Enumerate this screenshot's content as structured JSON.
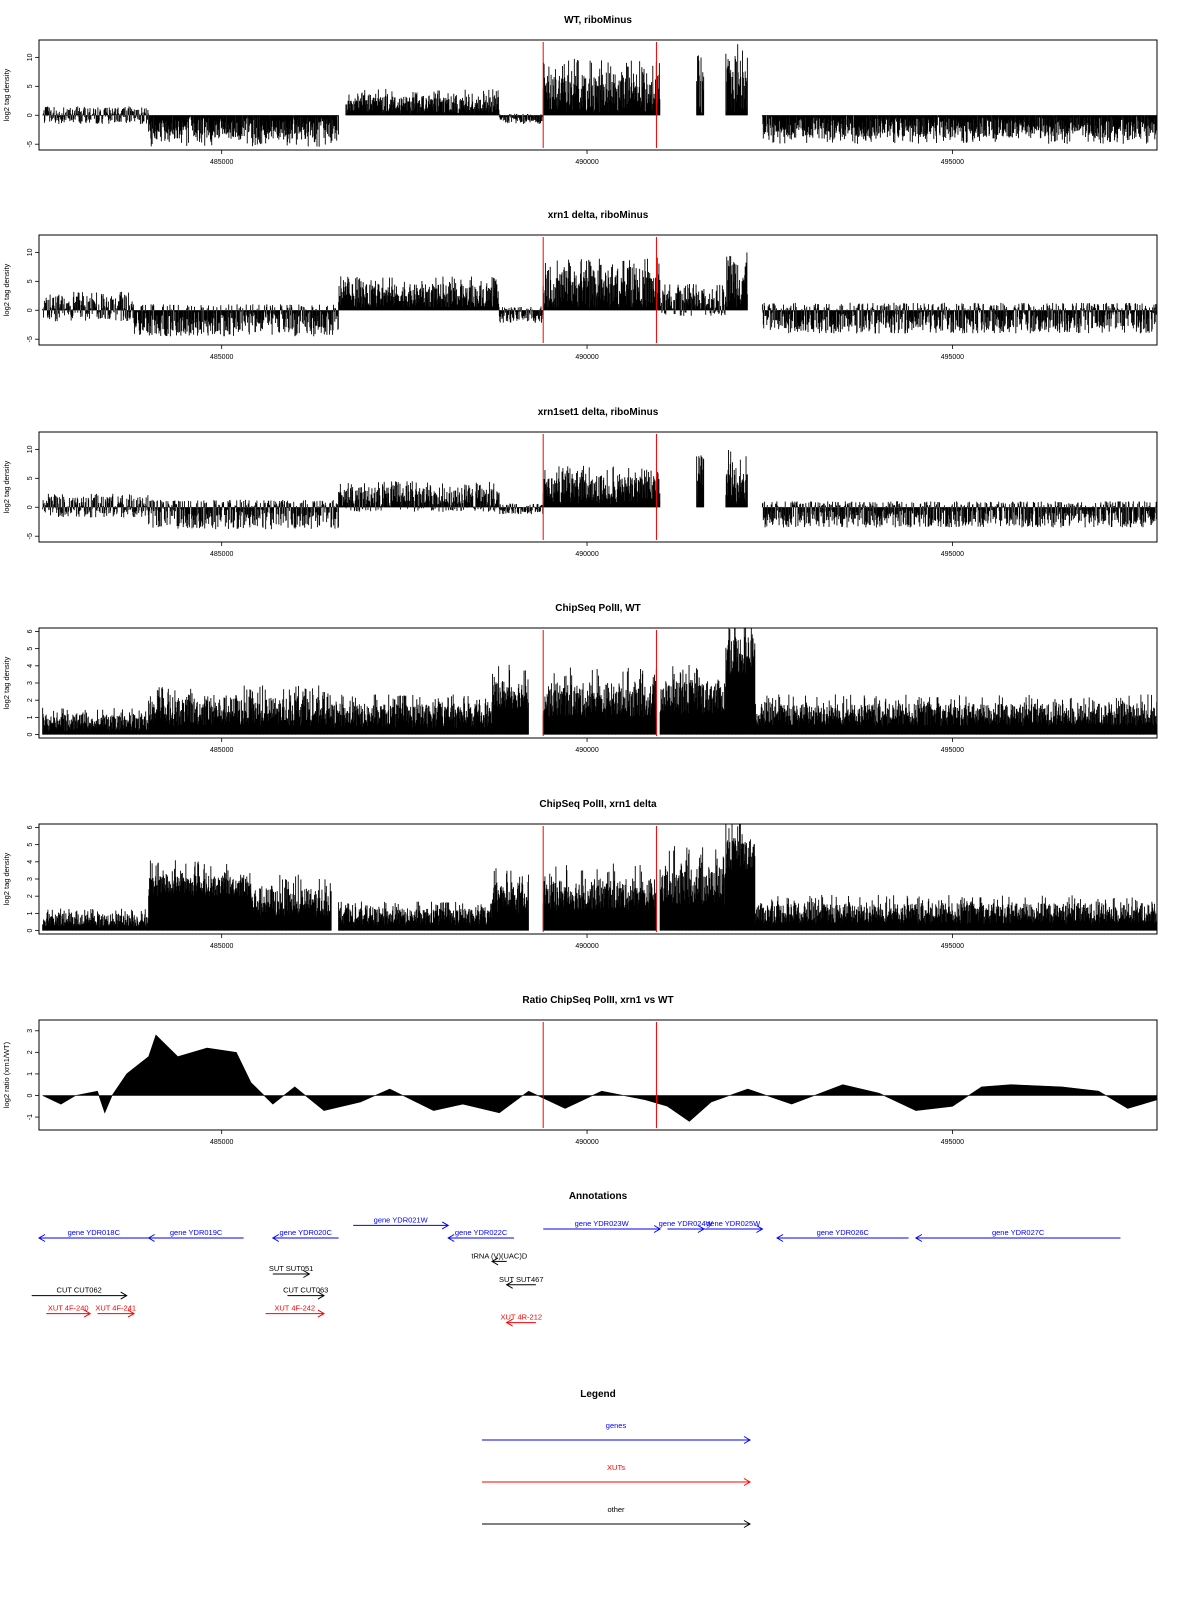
{
  "colors": {
    "gene": "#0000ff",
    "xut": "#ff0000",
    "other": "#000000",
    "marker": "#ff0000",
    "signal": "#000000"
  },
  "genome_axis": {
    "xlim": [
      482500,
      497800
    ],
    "ticks": [
      485000,
      490000,
      495000
    ],
    "tick_labels": [
      "485000",
      "490000",
      "495000"
    ]
  },
  "chart_data": [
    {
      "type": "bar",
      "title": "WT, riboMinus",
      "ylabel": "log2 tag density",
      "ylim": [
        -6,
        13
      ],
      "yticks": [
        -5,
        0,
        5,
        10
      ],
      "markers": [
        489400,
        490950
      ],
      "regions": [
        [
          482550,
          484000,
          -1.5,
          1.2
        ],
        [
          484000,
          486600,
          -4.2,
          0.0
        ],
        [
          486700,
          488800,
          0.3,
          3.5
        ],
        [
          488800,
          489400,
          -1.5,
          0.2
        ],
        [
          489400,
          491000,
          0.4,
          7.5
        ],
        [
          491500,
          491600,
          0.0,
          8.0
        ],
        [
          491900,
          492200,
          0.5,
          10.0
        ],
        [
          492400,
          497800,
          -3.8,
          0.0
        ]
      ]
    },
    {
      "type": "bar",
      "title": "xrn1 delta, riboMinus",
      "ylabel": "log2 tag density",
      "ylim": [
        -6,
        13
      ],
      "yticks": [
        -5,
        0,
        5,
        10
      ],
      "markers": [
        489400,
        490950
      ],
      "regions": [
        [
          482550,
          483800,
          -2.0,
          2.5
        ],
        [
          483800,
          486600,
          -4.5,
          0.8
        ],
        [
          486600,
          488800,
          0.5,
          4.5
        ],
        [
          488800,
          489400,
          -2.2,
          0.5
        ],
        [
          489400,
          491000,
          0.4,
          7.0
        ],
        [
          491000,
          491900,
          -1.0,
          3.5
        ],
        [
          491900,
          492200,
          0.5,
          10.0
        ],
        [
          492400,
          497800,
          -4.0,
          1.0
        ]
      ]
    },
    {
      "type": "bar",
      "title": "xrn1set1 delta, riboMinus",
      "ylabel": "log2 tag density",
      "ylim": [
        -6,
        13
      ],
      "yticks": [
        -5,
        0,
        5,
        10
      ],
      "markers": [
        489400,
        490950
      ],
      "regions": [
        [
          482550,
          484000,
          -1.8,
          1.8
        ],
        [
          484000,
          486600,
          -3.8,
          1.0
        ],
        [
          486600,
          488800,
          -0.8,
          3.5
        ],
        [
          488800,
          489400,
          -1.2,
          0.5
        ],
        [
          489400,
          491000,
          0.5,
          5.5
        ],
        [
          491500,
          491600,
          0.0,
          9.0
        ],
        [
          491900,
          492200,
          0.5,
          8.0
        ],
        [
          492400,
          497800,
          -3.5,
          0.8
        ]
      ]
    },
    {
      "type": "bar",
      "title": "ChipSeq PolII, WT",
      "ylabel": "log2 tag density",
      "ylim": [
        -0.2,
        6.2
      ],
      "yticks": [
        0,
        1,
        2,
        3,
        4,
        5,
        6
      ],
      "markers": [
        489400,
        490950
      ],
      "regions": [
        [
          482550,
          484000,
          0.2,
          1.2
        ],
        [
          484000,
          486500,
          0.5,
          2.2
        ],
        [
          486500,
          488700,
          0.4,
          1.8
        ],
        [
          488700,
          489200,
          1.5,
          3.2
        ],
        [
          489400,
          490950,
          1.0,
          3.0
        ],
        [
          491000,
          491900,
          1.2,
          3.2
        ],
        [
          491900,
          492300,
          3.5,
          5.8
        ],
        [
          492300,
          497800,
          0.5,
          1.8
        ]
      ]
    },
    {
      "type": "bar",
      "title": "ChipSeq PolII, xrn1 delta",
      "ylabel": "log2 tag density",
      "ylim": [
        -0.2,
        6.2
      ],
      "yticks": [
        0,
        1,
        2,
        3,
        4,
        5,
        6
      ],
      "markers": [
        489400,
        490950
      ],
      "regions": [
        [
          482550,
          484000,
          0.2,
          1.0
        ],
        [
          484000,
          485400,
          2.0,
          3.2
        ],
        [
          485400,
          486500,
          0.8,
          2.5
        ],
        [
          486600,
          488700,
          0.3,
          1.3
        ],
        [
          488700,
          489200,
          1.0,
          2.8
        ],
        [
          489400,
          490950,
          1.2,
          3.0
        ],
        [
          491000,
          491900,
          1.5,
          3.8
        ],
        [
          491900,
          492300,
          3.5,
          5.4
        ],
        [
          492300,
          497800,
          0.4,
          1.6
        ]
      ]
    },
    {
      "type": "area",
      "title": "Ratio ChipSeq PolII, xrn1 vs WT",
      "ylabel": "log2 ratio (xrn1/WT)",
      "ylim": [
        -1.6,
        3.5
      ],
      "yticks": [
        -1,
        0,
        1,
        2,
        3
      ],
      "markers": [
        489400,
        490950
      ],
      "x": [
        482550,
        482800,
        483000,
        483300,
        483400,
        483500,
        483700,
        484000,
        484100,
        484400,
        484800,
        485200,
        485400,
        485700,
        486000,
        486400,
        486900,
        487300,
        487900,
        488300,
        488800,
        489200,
        489700,
        490200,
        490800,
        491100,
        491400,
        491700,
        492200,
        492800,
        493500,
        494000,
        494500,
        495000,
        495400,
        495800,
        496500,
        497000,
        497400,
        497800
      ],
      "y": [
        0.0,
        -0.4,
        0.0,
        0.2,
        -0.8,
        0.0,
        1.0,
        1.8,
        2.8,
        1.8,
        2.2,
        2.0,
        0.6,
        -0.4,
        0.4,
        -0.7,
        -0.3,
        0.3,
        -0.7,
        -0.4,
        -0.8,
        0.2,
        -0.6,
        0.2,
        -0.2,
        -0.5,
        -1.2,
        -0.3,
        0.3,
        -0.4,
        0.5,
        0.1,
        -0.7,
        -0.5,
        0.4,
        0.5,
        0.4,
        0.2,
        -0.6,
        -0.2
      ]
    }
  ],
  "annotations": {
    "title": "Annotations",
    "items": [
      {
        "label": "gene YDR018C",
        "x0": 482500,
        "x1": 484000,
        "row": 0,
        "dir": "left",
        "kind": "gene"
      },
      {
        "label": "gene YDR019C",
        "x0": 484000,
        "x1": 485300,
        "row": 0,
        "dir": "left",
        "kind": "gene"
      },
      {
        "label": "gene YDR020C",
        "x0": 485700,
        "x1": 486600,
        "row": 0,
        "dir": "left",
        "kind": "gene"
      },
      {
        "label": "gene YDR021W",
        "x0": 486800,
        "x1": 488100,
        "row": -0.7,
        "dir": "right",
        "kind": "gene"
      },
      {
        "label": "gene YDR022C",
        "x0": 488100,
        "x1": 489000,
        "row": 0,
        "dir": "left",
        "kind": "gene"
      },
      {
        "label": "gene YDR023W",
        "x0": 489400,
        "x1": 491000,
        "row": -0.5,
        "dir": "right",
        "kind": "gene"
      },
      {
        "label": "gene YDR024W",
        "x0": 491100,
        "x1": 491600,
        "row": -0.5,
        "dir": "right",
        "kind": "gene"
      },
      {
        "label": "gene YDR025W",
        "x0": 491600,
        "x1": 492400,
        "row": -0.5,
        "dir": "right",
        "kind": "gene"
      },
      {
        "label": "gene YDR026C",
        "x0": 492600,
        "x1": 494400,
        "row": 0,
        "dir": "left",
        "kind": "gene"
      },
      {
        "label": "gene YDR027C",
        "x0": 494500,
        "x1": 497300,
        "row": 0,
        "dir": "left",
        "kind": "gene"
      },
      {
        "label": "tRNA (V)(UAC)D",
        "x0": 488700,
        "x1": 488900,
        "row": 1.3,
        "dir": "left",
        "kind": "other"
      },
      {
        "label": "SUT SUT051",
        "x0": 485700,
        "x1": 486200,
        "row": 2.0,
        "dir": "right",
        "kind": "other"
      },
      {
        "label": "SUT SUT467",
        "x0": 488900,
        "x1": 489300,
        "row": 2.6,
        "dir": "left",
        "kind": "other"
      },
      {
        "label": "CUT CUT062",
        "x0": 482400,
        "x1": 483700,
        "row": 3.2,
        "dir": "right",
        "kind": "other"
      },
      {
        "label": "CUT CUT063",
        "x0": 485900,
        "x1": 486400,
        "row": 3.2,
        "dir": "right",
        "kind": "other"
      },
      {
        "label": "XUT 4F-240",
        "x0": 482600,
        "x1": 483200,
        "row": 4.2,
        "dir": "right",
        "kind": "xut"
      },
      {
        "label": "XUT 4F-241",
        "x0": 483300,
        "x1": 483800,
        "row": 4.2,
        "dir": "right",
        "kind": "xut"
      },
      {
        "label": "XUT 4F-242",
        "x0": 485600,
        "x1": 486400,
        "row": 4.2,
        "dir": "right",
        "kind": "xut"
      },
      {
        "label": "XUT 4R-212",
        "x0": 488900,
        "x1": 489300,
        "row": 4.7,
        "dir": "left",
        "kind": "xut"
      }
    ]
  },
  "legend": {
    "title": "Legend",
    "items": [
      {
        "label": "genes",
        "kind": "gene"
      },
      {
        "label": "XUTs",
        "kind": "xut"
      },
      {
        "label": "other",
        "kind": "other"
      }
    ]
  }
}
